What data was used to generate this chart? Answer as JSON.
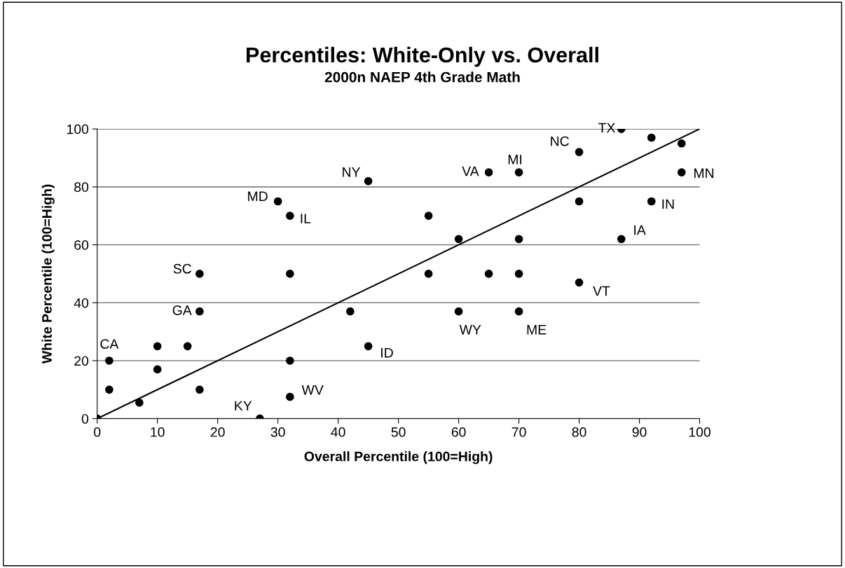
{
  "chart_data": {
    "type": "scatter",
    "title": "Percentiles: White-Only vs. Overall",
    "subtitle": "2000n NAEP 4th Grade Math",
    "xlabel": "Overall Percentile (100=High)",
    "ylabel": "White Percentile (100=High)",
    "xlim": [
      0,
      100
    ],
    "ylim": [
      0,
      100
    ],
    "xticks": [
      0,
      10,
      20,
      30,
      40,
      50,
      60,
      70,
      80,
      90,
      100
    ],
    "yticks": [
      0,
      20,
      40,
      60,
      80,
      100
    ],
    "grid": "y",
    "marker": "circle",
    "legend": false,
    "series": [
      {
        "color": "#000000",
        "x": [
          0,
          2,
          2,
          7,
          10,
          10,
          15,
          17,
          17,
          17,
          27,
          30,
          32,
          32,
          32,
          32,
          42,
          45,
          45,
          55,
          55,
          60,
          60,
          65,
          65,
          70,
          70,
          70,
          70,
          80,
          80,
          80,
          87,
          87,
          92,
          92,
          97,
          97
        ],
        "values": [
          0,
          20,
          10,
          5.5,
          25,
          17,
          25,
          50,
          37,
          10,
          0,
          75,
          70,
          50,
          20,
          7.5,
          37,
          82,
          25,
          70,
          50,
          62,
          37,
          85,
          50,
          85,
          62,
          50,
          37,
          92,
          75,
          47,
          100,
          62,
          97,
          75,
          95,
          85
        ]
      },
      {
        "type": "line",
        "color": "#000000",
        "marker": "none",
        "x": [
          0,
          100
        ],
        "values": [
          0,
          100
        ]
      }
    ],
    "annotations": [
      {
        "text": "CA",
        "x": 2,
        "y": 20
      },
      {
        "text": "SC",
        "x": 17,
        "y": 50
      },
      {
        "text": "GA",
        "x": 17,
        "y": 37
      },
      {
        "text": "MD",
        "x": 30,
        "y": 75
      },
      {
        "text": "IL",
        "x": 32,
        "y": 70
      },
      {
        "text": "NY",
        "x": 45,
        "y": 82
      },
      {
        "text": "VA",
        "x": 65,
        "y": 85
      },
      {
        "text": "MI",
        "x": 70,
        "y": 85
      },
      {
        "text": "NC",
        "x": 80,
        "y": 92
      },
      {
        "text": "TX",
        "x": 87,
        "y": 100
      },
      {
        "text": "MN",
        "x": 97,
        "y": 85
      },
      {
        "text": "IN",
        "x": 92,
        "y": 75
      },
      {
        "text": "IA",
        "x": 87,
        "y": 62
      },
      {
        "text": "VT",
        "x": 80,
        "y": 47
      },
      {
        "text": "WY",
        "x": 60,
        "y": 37
      },
      {
        "text": "ME",
        "x": 70,
        "y": 37
      },
      {
        "text": "ID",
        "x": 45,
        "y": 25
      },
      {
        "text": "WV",
        "x": 32,
        "y": 7.5
      },
      {
        "text": "KY",
        "x": 27,
        "y": 0
      }
    ]
  }
}
